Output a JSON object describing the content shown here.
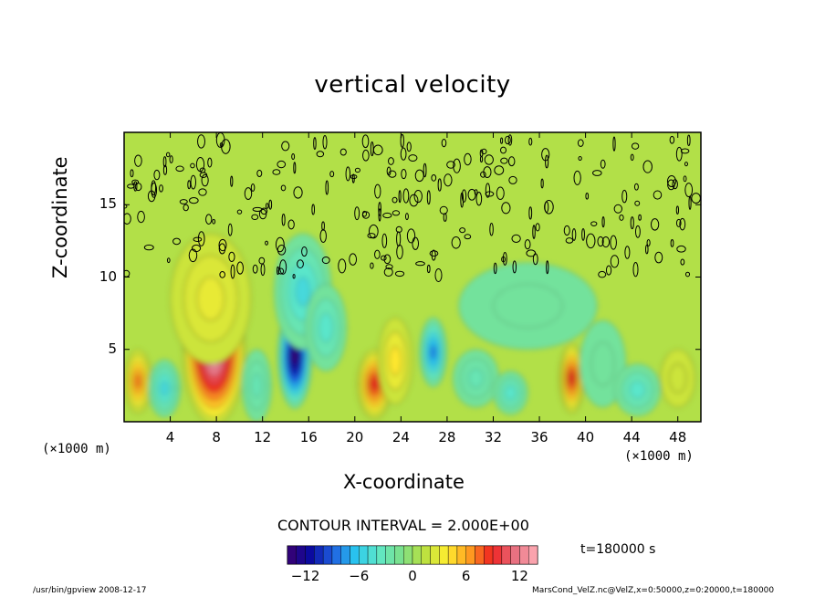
{
  "chart_data": {
    "type": "heatmap",
    "title": "vertical velocity",
    "xlabel": "X-coordinate",
    "ylabel": "Z-coordinate",
    "x_unit": "(×1000 m)",
    "x_unit_right": "(×1000 m)",
    "xlim": [
      0,
      50
    ],
    "ylim": [
      0,
      20
    ],
    "xticks": [
      "4",
      "8",
      "12",
      "16",
      "20",
      "24",
      "28",
      "32",
      "36",
      "40",
      "44",
      "48"
    ],
    "yticks": [
      "5",
      "10",
      "15"
    ],
    "contour_interval": "CONTOUR INTERVAL = 2.000E+00",
    "time": "t=180000 s",
    "colorbar": {
      "range": [
        -14,
        14
      ],
      "ticks": [
        "−12",
        "−6",
        "0",
        "6",
        "12"
      ]
    },
    "features": [
      {
        "x": 1.2,
        "z": 2.8,
        "w": 7,
        "rx": 1.2,
        "rz": 2.2
      },
      {
        "x": 3.5,
        "z": 2.3,
        "w": -5,
        "rx": 1.4,
        "rz": 2.0
      },
      {
        "x": 7.8,
        "z": 4.8,
        "w": 15,
        "rx": 2.7,
        "rz": 5.0
      },
      {
        "x": 7.5,
        "z": 8.5,
        "w": 3,
        "rx": 3.5,
        "rz": 4.5
      },
      {
        "x": 11.5,
        "z": 2.5,
        "w": -3,
        "rx": 1.3,
        "rz": 2.5
      },
      {
        "x": 14.8,
        "z": 4.5,
        "w": -14,
        "rx": 1.5,
        "rz": 3.6
      },
      {
        "x": 15.5,
        "z": 9.0,
        "w": -5,
        "rx": 2.5,
        "rz": 4.0
      },
      {
        "x": 17.5,
        "z": 6.5,
        "w": -4,
        "rx": 1.8,
        "rz": 3.0
      },
      {
        "x": 21.7,
        "z": 2.6,
        "w": 9,
        "rx": 1.5,
        "rz": 2.4
      },
      {
        "x": 23.5,
        "z": 4.2,
        "w": 4,
        "rx": 1.5,
        "rz": 3.0
      },
      {
        "x": 26.8,
        "z": 4.8,
        "w": -8,
        "rx": 1.2,
        "rz": 2.4
      },
      {
        "x": 30.5,
        "z": 3.0,
        "w": -3,
        "rx": 2.0,
        "rz": 2.0
      },
      {
        "x": 33.5,
        "z": 2.0,
        "w": -4,
        "rx": 1.5,
        "rz": 1.5
      },
      {
        "x": 38.8,
        "z": 3.0,
        "w": 9,
        "rx": 1.1,
        "rz": 2.4
      },
      {
        "x": 41.5,
        "z": 4.0,
        "w": -2,
        "rx": 2.0,
        "rz": 3.0
      },
      {
        "x": 44.5,
        "z": 2.2,
        "w": -4,
        "rx": 2.0,
        "rz": 1.8
      },
      {
        "x": 48.0,
        "z": 3.0,
        "w": 2,
        "rx": 1.5,
        "rz": 2.0
      },
      {
        "x": 35.0,
        "z": 8.0,
        "w": -2,
        "rx": 6.0,
        "rz": 3.0
      }
    ]
  },
  "footer": {
    "left": "/usr/bin/gpview  2008-12-17",
    "right": "MarsCond_VelZ.nc@VelZ,x=0:50000,z=0:20000,t=180000"
  },
  "palette": {
    "stops": [
      "#3a0070",
      "#0a0aa0",
      "#1f5fe0",
      "#2ac8f0",
      "#5ee8c8",
      "#7ce08a",
      "#b8e040",
      "#ffee30",
      "#ffa020",
      "#f02020",
      "#e87080",
      "#ffb0b8"
    ]
  }
}
